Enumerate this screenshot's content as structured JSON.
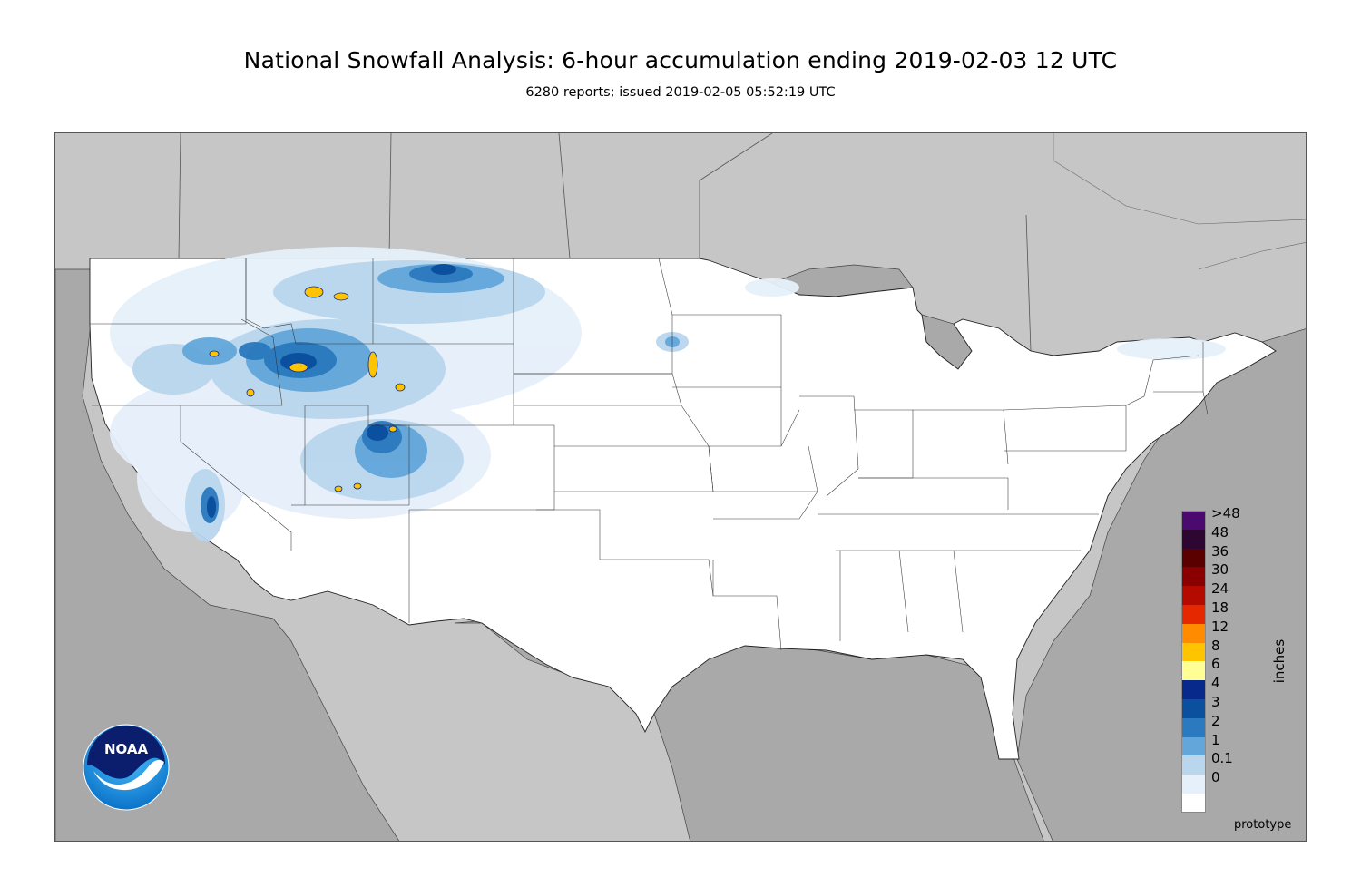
{
  "header": {
    "title": "National Snowfall Analysis: 6-hour accumulation ending 2019-02-03 12 UTC",
    "subtitle": "6280 reports; issued 2019-02-05 05:52:19 UTC"
  },
  "legend": {
    "units": "inches",
    "entries": [
      {
        "label": ">48",
        "color": "#4b0a6e"
      },
      {
        "label": "48",
        "color": "#2e0632"
      },
      {
        "label": "36",
        "color": "#5a0000"
      },
      {
        "label": "30",
        "color": "#8a0000"
      },
      {
        "label": "24",
        "color": "#b40a00"
      },
      {
        "label": "18",
        "color": "#e62800"
      },
      {
        "label": "12",
        "color": "#ff8c00"
      },
      {
        "label": "8",
        "color": "#ffc400"
      },
      {
        "label": "6",
        "color": "#ffff96"
      },
      {
        "label": "4",
        "color": "#08298c"
      },
      {
        "label": "3",
        "color": "#0a509e"
      },
      {
        "label": "2",
        "color": "#2b79be"
      },
      {
        "label": "1",
        "color": "#62a6da"
      },
      {
        "label": "0.1",
        "color": "#b9d6ed"
      },
      {
        "label": "0",
        "color": "#e6f0fa"
      },
      {
        "label": "",
        "color": "#ffffff"
      }
    ]
  },
  "footer": {
    "note": "prototype"
  },
  "logo": {
    "text": "NOAA",
    "icon": "noaa-logo-icon"
  },
  "colors": {
    "land_outside": "#c6c6c6",
    "water": "#a9a9a9",
    "conus": "#ffffff"
  }
}
